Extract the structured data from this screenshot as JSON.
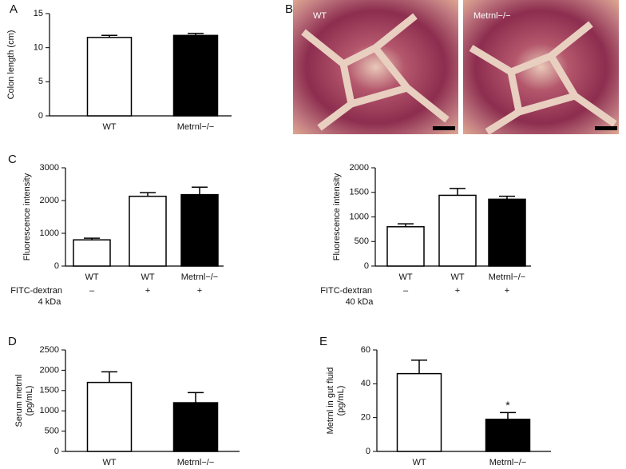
{
  "chart_data": [
    {
      "type": "bar",
      "panel_label": "A",
      "ylabel": "Colon length (cm)",
      "categories": [
        "WT",
        "Metrnl−/−"
      ],
      "values": [
        11.5,
        11.8
      ],
      "errors": [
        0.3,
        0.3
      ],
      "colors": [
        "#ffffff",
        "#000000"
      ],
      "ylim": [
        0,
        15
      ],
      "yticks": [
        0,
        5,
        10,
        15
      ]
    },
    {
      "type": "bar",
      "panel_label": "C",
      "ylabel": "Fluorescence intensity",
      "categories": [
        "WT",
        "WT",
        "Metrnl−/−"
      ],
      "values": [
        800,
        2130,
        2180
      ],
      "errors": [
        50,
        110,
        230
      ],
      "colors": [
        "#ffffff",
        "#ffffff",
        "#000000"
      ],
      "ylim": [
        0,
        3000
      ],
      "yticks": [
        0,
        1000,
        2000,
        3000
      ],
      "treatment_label": "FITC-dextran",
      "treatment_signs": [
        "–",
        "+",
        "+"
      ],
      "treatment_size": "4 kDa"
    },
    {
      "type": "bar",
      "ylabel": "Fluorescence intensity",
      "categories": [
        "WT",
        "WT",
        "Metrnl−/−"
      ],
      "values": [
        800,
        1440,
        1360
      ],
      "errors": [
        60,
        140,
        60
      ],
      "colors": [
        "#ffffff",
        "#ffffff",
        "#000000"
      ],
      "ylim": [
        0,
        2000
      ],
      "yticks": [
        0,
        500,
        1000,
        1500,
        2000
      ],
      "treatment_label": "FITC-dextran",
      "treatment_signs": [
        "–",
        "+",
        "+"
      ],
      "treatment_size": "40 kDa"
    },
    {
      "type": "bar",
      "panel_label": "D",
      "ylabel": "Serum metrnl",
      "ylabel_unit": "(pg/mL)",
      "categories": [
        "WT",
        "Metrnl−/−"
      ],
      "values": [
        1700,
        1200
      ],
      "errors": [
        260,
        250
      ],
      "colors": [
        "#ffffff",
        "#000000"
      ],
      "ylim": [
        0,
        2500
      ],
      "yticks": [
        0,
        500,
        1000,
        1500,
        2000,
        2500
      ]
    },
    {
      "type": "bar",
      "panel_label": "E",
      "ylabel": "Metrnl in gut fluid",
      "ylabel_unit": "(pg/mL)",
      "categories": [
        "WT",
        "Metrnl−/−"
      ],
      "values": [
        46,
        19
      ],
      "errors": [
        8,
        4
      ],
      "colors": [
        "#ffffff",
        "#000000"
      ],
      "ylim": [
        0,
        60
      ],
      "yticks": [
        0,
        20,
        40,
        60
      ],
      "annotation": "*"
    }
  ],
  "images": {
    "panel_label": "B",
    "labels": [
      "WT",
      "Metrnl−/−"
    ]
  }
}
